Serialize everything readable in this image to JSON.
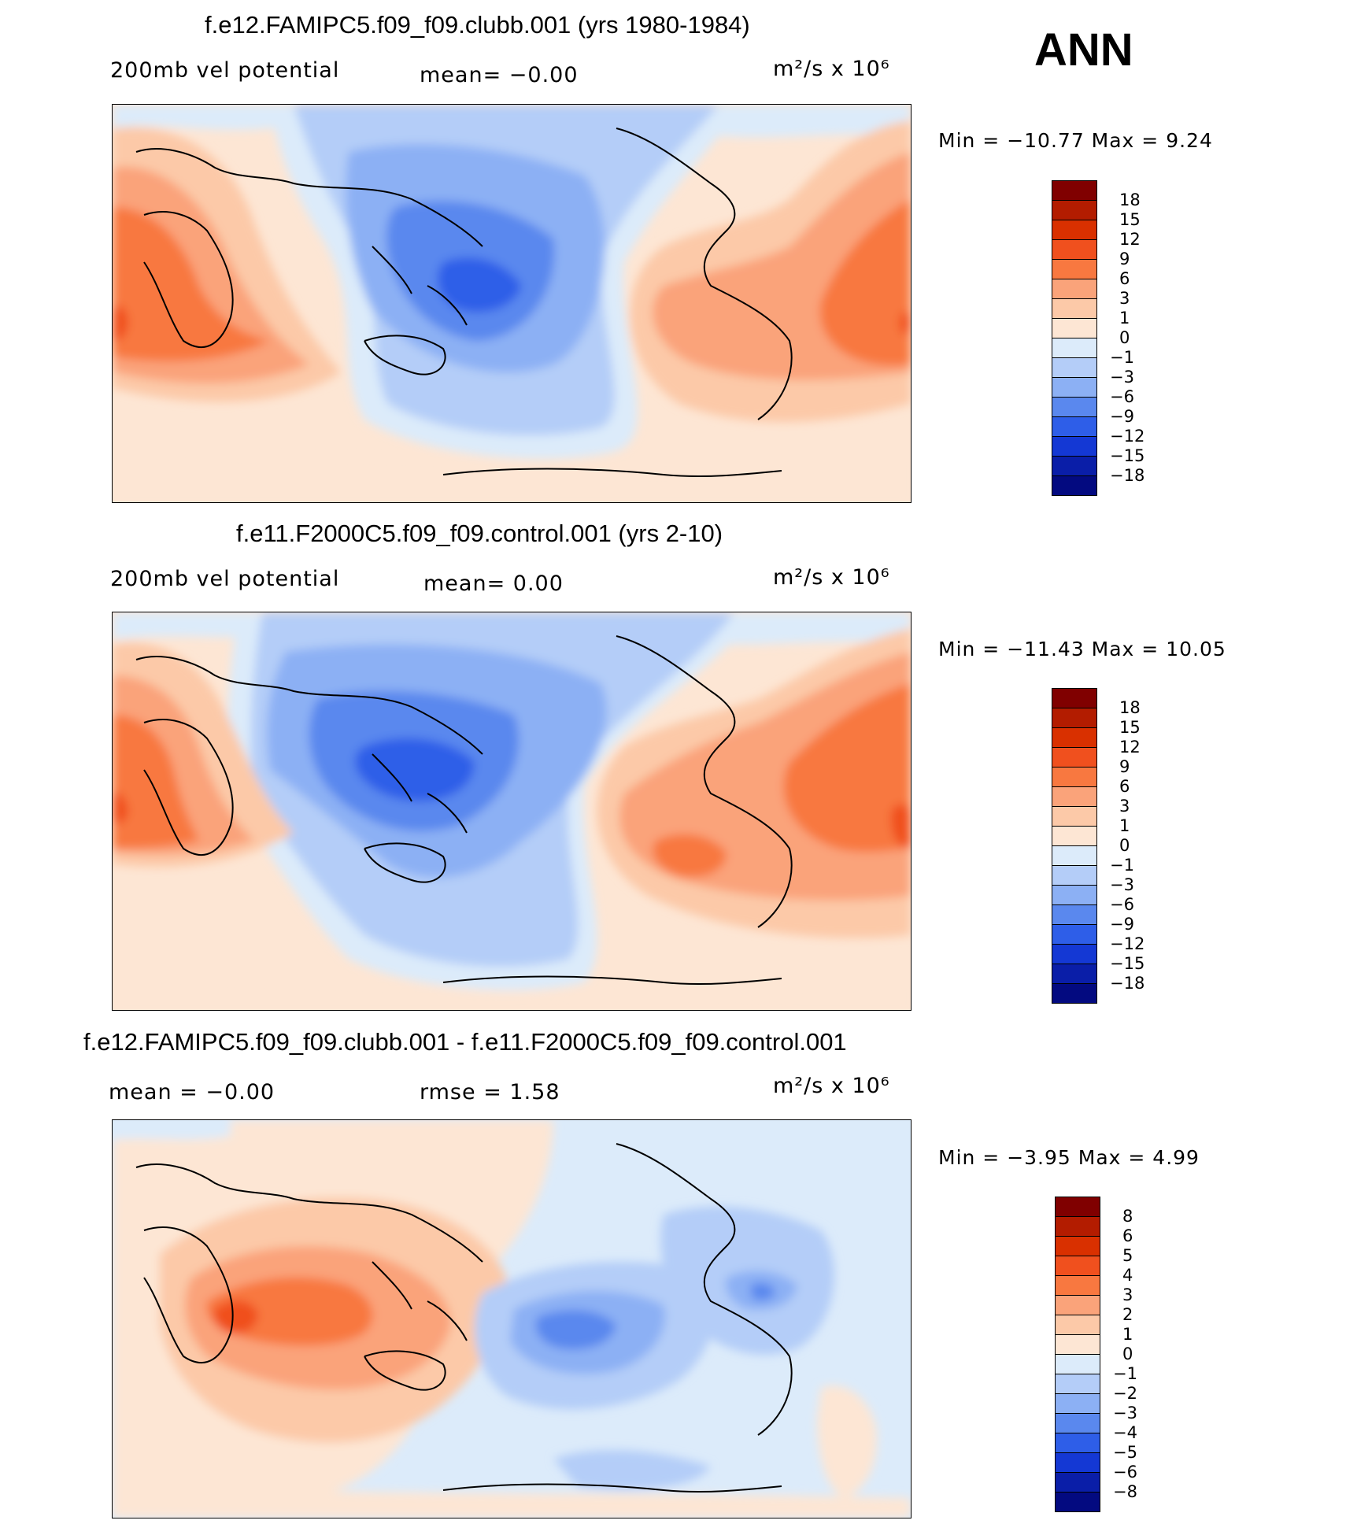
{
  "season": "ANN",
  "panels": [
    {
      "title": "f.e12.FAMIPC5.f09_f09.clubb.001 (yrs 1980-1984)",
      "left_label": "200mb vel potential",
      "middle_label": "mean=   −0.00",
      "units": "m²/s x 10⁶",
      "min_max": "Min = −10.77 Max =    9.24",
      "colorbar_ticks": [
        "18",
        "15",
        "12",
        "9",
        "6",
        "3",
        "1",
        "0",
        "−1",
        "−3",
        "−6",
        "−9",
        "−12",
        "−15",
        "−18"
      ]
    },
    {
      "title": "f.e11.F2000C5.f09_f09.control.001 (yrs 2-10)",
      "left_label": "200mb vel potential",
      "middle_label": "mean=    0.00",
      "units": "m²/s x 10⁶",
      "min_max": "Min = −11.43 Max =  10.05",
      "colorbar_ticks": [
        "18",
        "15",
        "12",
        "9",
        "6",
        "3",
        "1",
        "0",
        "−1",
        "−3",
        "−6",
        "−9",
        "−12",
        "−15",
        "−18"
      ]
    },
    {
      "title": "f.e12.FAMIPC5.f09_f09.clubb.001 - f.e11.F2000C5.f09_f09.control.001",
      "left_label": "mean =   −0.00",
      "middle_label": "rmse =    1.58",
      "units": "m²/s x 10⁶",
      "min_max": "Min =   −3.95 Max =    4.99",
      "colorbar_ticks": [
        "8",
        "6",
        "5",
        "4",
        "3",
        "2",
        "1",
        "0",
        "−1",
        "−2",
        "−3",
        "−4",
        "−5",
        "−6",
        "−8"
      ]
    }
  ],
  "colorbar_colors": [
    "#800000",
    "#b31c00",
    "#d93000",
    "#f0501e",
    "#f87840",
    "#faa37a",
    "#fcc9a8",
    "#fde6d4",
    "#dcebfa",
    "#b4cdf8",
    "#8cb0f4",
    "#5a88ee",
    "#2e5ee8",
    "#1438d4",
    "#0a1ea8",
    "#030a80"
  ],
  "chart_data": [
    {
      "type": "heatmap",
      "title": "f.e12.FAMIPC5.f09_f09.clubb.001 (yrs 1980-1984)",
      "variable": "200mb velocity potential",
      "units": "m^2/s x 10^6",
      "mean": -0.0,
      "min": -10.77,
      "max": 9.24,
      "levels": [
        -18,
        -15,
        -12,
        -9,
        -6,
        -3,
        -1,
        0,
        1,
        3,
        6,
        9,
        12,
        15,
        18
      ]
    },
    {
      "type": "heatmap",
      "title": "f.e11.F2000C5.f09_f09.control.001 (yrs 2-10)",
      "variable": "200mb velocity potential",
      "units": "m^2/s x 10^6",
      "mean": 0.0,
      "min": -11.43,
      "max": 10.05,
      "levels": [
        -18,
        -15,
        -12,
        -9,
        -6,
        -3,
        -1,
        0,
        1,
        3,
        6,
        9,
        12,
        15,
        18
      ]
    },
    {
      "type": "heatmap",
      "title": "f.e12.FAMIPC5.f09_f09.clubb.001 - f.e11.F2000C5.f09_f09.control.001",
      "variable": "200mb velocity potential difference",
      "units": "m^2/s x 10^6",
      "mean": -0.0,
      "rmse": 1.58,
      "min": -3.95,
      "max": 4.99,
      "levels": [
        -8,
        -6,
        -5,
        -4,
        -3,
        -2,
        -1,
        0,
        1,
        2,
        3,
        4,
        5,
        6,
        8
      ]
    }
  ]
}
